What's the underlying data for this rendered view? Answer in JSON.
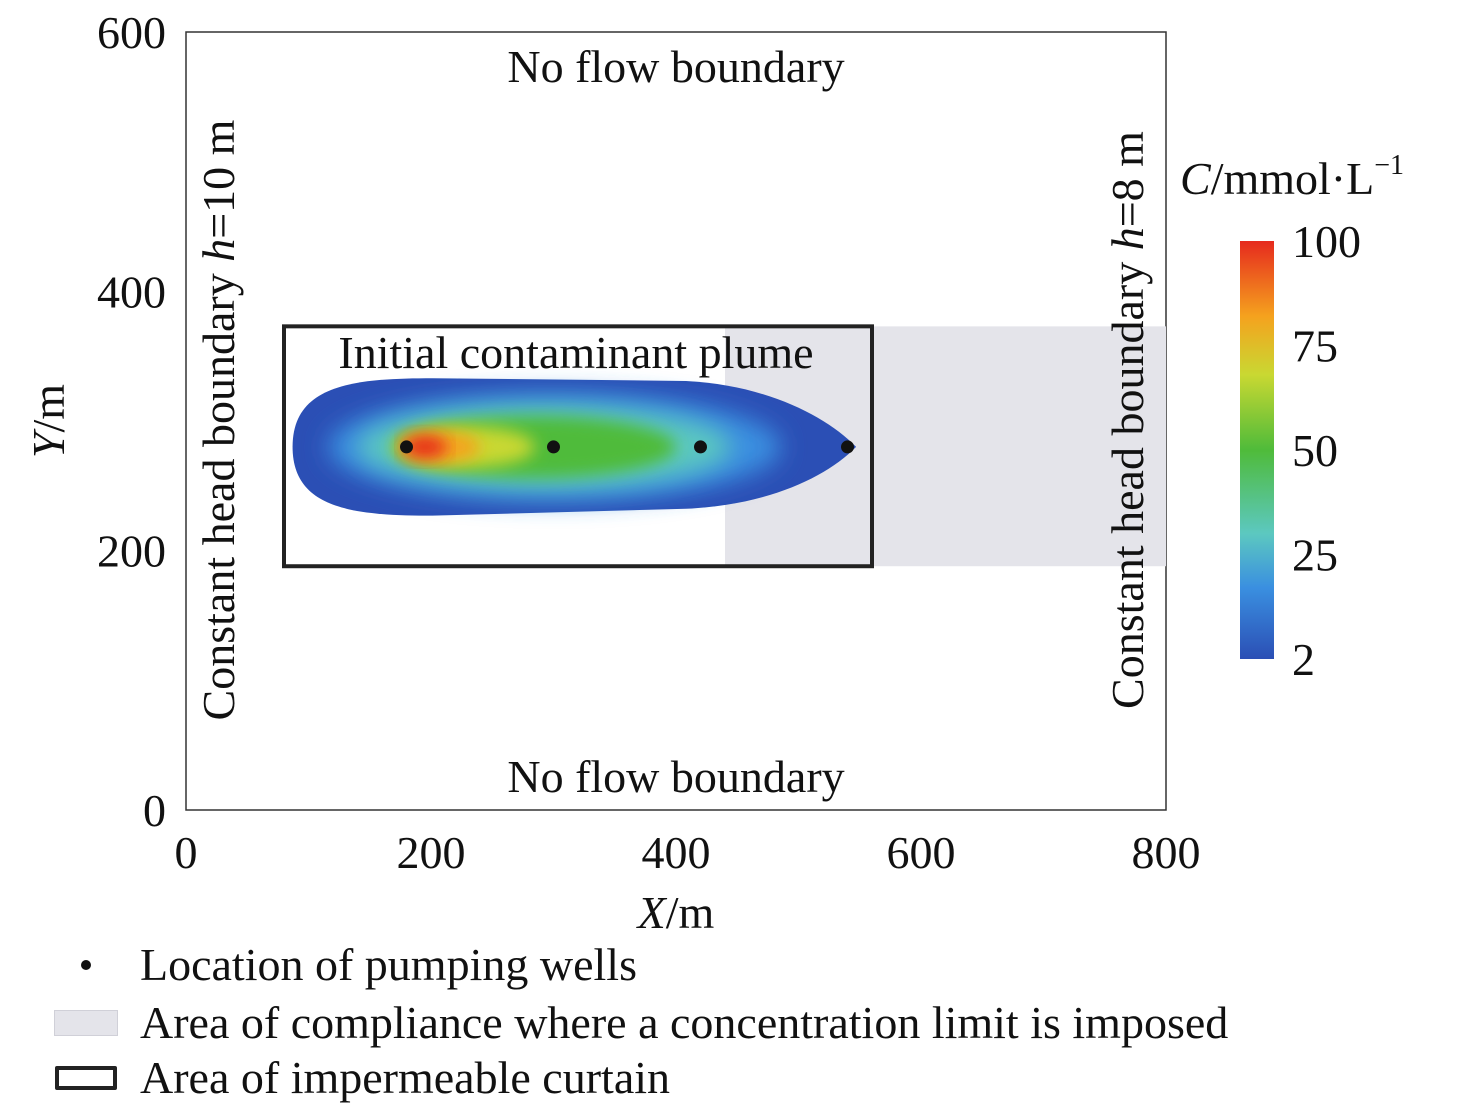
{
  "chart_data": {
    "type": "heatmap",
    "xlabel_var": "X",
    "xlabel_unit": "/m",
    "ylabel_var": "Y",
    "ylabel_unit": "/m",
    "xlim": [
      0,
      800
    ],
    "ylim": [
      0,
      600
    ],
    "xticks": [
      0,
      200,
      400,
      600,
      800
    ],
    "yticks": [
      0,
      200,
      400,
      600
    ],
    "boundaries": {
      "top": "No flow boundary",
      "bottom": "No flow boundary",
      "left": {
        "text": "Constant head boundary ",
        "var": "h",
        "value": "=10 m"
      },
      "right": {
        "text": "Constant head boundary ",
        "var": "h",
        "value": "=8 m"
      }
    },
    "plume_label": "Initial contaminant plume",
    "curtain": {
      "x": [
        80,
        560
      ],
      "y": [
        188,
        373
      ]
    },
    "compliance_area": {
      "x": [
        440,
        800
      ],
      "y": [
        188,
        373
      ]
    },
    "wells": [
      {
        "x": 180,
        "y": 280
      },
      {
        "x": 300,
        "y": 280
      },
      {
        "x": 420,
        "y": 280
      },
      {
        "x": 540,
        "y": 280
      }
    ],
    "plume": {
      "center_y": 280,
      "outer_x": [
        87,
        547
      ],
      "outer_half_height": 53,
      "peak": {
        "x": 195,
        "y": 280,
        "value": 100
      }
    },
    "colorbar": {
      "title_var": "C",
      "title_unit": "/mmol·L",
      "title_exp": "−1",
      "ticks": [
        "100",
        "75",
        "50",
        "25",
        "2"
      ],
      "min": 2,
      "max": 100,
      "colors": [
        "#2b4fb5",
        "#3a8fe0",
        "#5cc8c0",
        "#4fbb3a",
        "#c9d832",
        "#f5a21e",
        "#e62a1e"
      ]
    },
    "legend": [
      {
        "marker": "dot",
        "label": "Location of pumping wells"
      },
      {
        "marker": "area",
        "label": "Area of compliance where a concentration limit is imposed"
      },
      {
        "marker": "curtain",
        "label": "Area of impermeable curtain"
      }
    ]
  }
}
